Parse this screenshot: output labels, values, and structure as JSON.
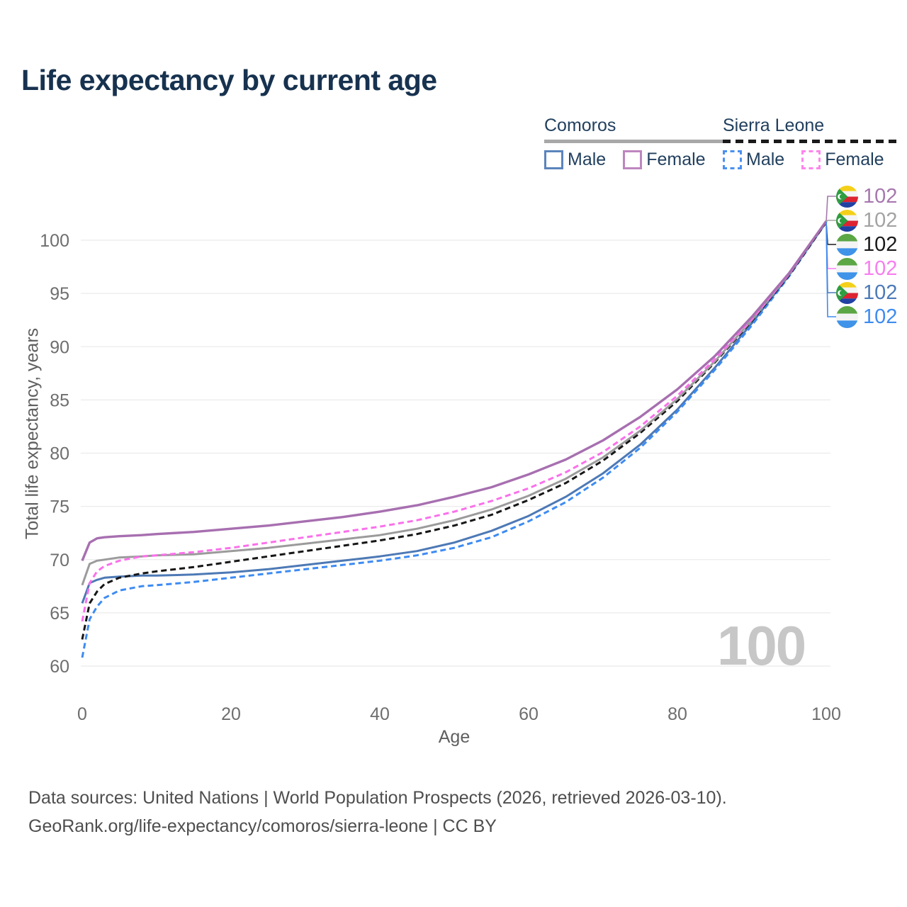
{
  "title": "Life expectancy by current age",
  "watermark": "100",
  "legend": {
    "groups": [
      {
        "title": "Comoros",
        "underline": "solid",
        "underline_color": "#a8a8a8",
        "items": [
          {
            "label": "Male",
            "swatch_color": "#5b84bc",
            "swatch_style": "solid"
          },
          {
            "label": "Female",
            "swatch_color": "#bd86bf",
            "swatch_style": "solid"
          }
        ]
      },
      {
        "title": "Sierra Leone",
        "underline": "dashed",
        "underline_color": "#1a1a1a",
        "items": [
          {
            "label": "Male",
            "swatch_color": "#4a90f0",
            "swatch_style": "dashed"
          },
          {
            "label": "Female",
            "swatch_color": "#fc85ec",
            "swatch_style": "dashed"
          }
        ]
      }
    ]
  },
  "y_axis": {
    "title": "Total life expectancy, years",
    "ticks": [
      60,
      65,
      70,
      75,
      80,
      85,
      90,
      95,
      100
    ]
  },
  "x_axis": {
    "title": "Age",
    "ticks": [
      0,
      20,
      40,
      60,
      80,
      100
    ]
  },
  "end_labels": [
    {
      "flag": "comoros",
      "series": "comoros_female",
      "value": "102",
      "color": "#a678ae"
    },
    {
      "flag": "comoros",
      "series": "comoros_all",
      "value": "102",
      "color": "#a3a3a3"
    },
    {
      "flag": "sierra_leone",
      "series": "sl_all",
      "value": "102",
      "color": "#1a1a1a"
    },
    {
      "flag": "sierra_leone",
      "series": "sl_female",
      "value": "102",
      "color": "#f77ef0"
    },
    {
      "flag": "comoros",
      "series": "comoros_male",
      "value": "102",
      "color": "#4d7ab8"
    },
    {
      "flag": "sierra_leone",
      "series": "sl_male",
      "value": "102",
      "color": "#3e8cf0"
    }
  ],
  "footer": {
    "line1": "Data sources: United Nations | World Population Prospects (2026, retrieved 2026-03-10).",
    "line2": "GeoRank.org/life-expectancy/comoros/sierra-leone | CC BY"
  },
  "chart_data": {
    "type": "line",
    "title": "Life expectancy by current age",
    "xlabel": "Age",
    "ylabel": "Total life expectancy, years",
    "x_ticks": [
      0,
      20,
      40,
      60,
      80,
      100
    ],
    "y_ticks": [
      60,
      65,
      70,
      75,
      80,
      85,
      90,
      95,
      100
    ],
    "xlim": [
      0,
      100
    ],
    "ylim": [
      60,
      100
    ],
    "grid": "horizontal",
    "legend_position": "top-right",
    "x": [
      0,
      1,
      2,
      3,
      5,
      8,
      10,
      15,
      20,
      25,
      30,
      35,
      40,
      45,
      50,
      55,
      60,
      65,
      70,
      75,
      80,
      85,
      90,
      95,
      100
    ],
    "series": [
      {
        "id": "comoros_male",
        "name": "Comoros Male",
        "color": "#4d79b5",
        "dash": "solid",
        "end_label": "102",
        "values": [
          65.9,
          67.8,
          68.1,
          68.3,
          68.4,
          68.5,
          68.5,
          68.6,
          68.8,
          69.1,
          69.5,
          69.9,
          70.3,
          70.8,
          71.6,
          72.7,
          74.1,
          75.9,
          78.1,
          80.8,
          84.1,
          88.0,
          92.2,
          96.7,
          101.7
        ]
      },
      {
        "id": "sl_male",
        "name": "Sierra Leone Male",
        "color": "#3d8bf2",
        "dash": "dashed",
        "end_label": "102",
        "values": [
          60.8,
          64.4,
          65.6,
          66.4,
          67.1,
          67.5,
          67.6,
          67.9,
          68.3,
          68.7,
          69.1,
          69.5,
          69.9,
          70.4,
          71.1,
          72.1,
          73.6,
          75.4,
          77.7,
          80.5,
          83.9,
          87.8,
          92.0,
          96.6,
          101.7
        ]
      },
      {
        "id": "sl_all",
        "name": "Sierra Leone",
        "color": "#161616",
        "dash": "dashed",
        "end_label": "102",
        "values": [
          62.5,
          65.9,
          67.0,
          67.7,
          68.3,
          68.7,
          68.9,
          69.3,
          69.8,
          70.3,
          70.8,
          71.3,
          71.8,
          72.4,
          73.2,
          74.2,
          75.6,
          77.2,
          79.3,
          81.9,
          84.9,
          88.5,
          92.4,
          96.7,
          101.7
        ]
      },
      {
        "id": "comoros_all",
        "name": "Comoros",
        "color": "#9b9b9b",
        "dash": "solid",
        "end_label": "102",
        "values": [
          67.6,
          69.6,
          69.9,
          70.0,
          70.2,
          70.3,
          70.4,
          70.5,
          70.8,
          71.1,
          71.5,
          71.9,
          72.3,
          72.9,
          73.7,
          74.7,
          76.0,
          77.6,
          79.6,
          82.1,
          85.1,
          88.6,
          92.5,
          96.8,
          101.8
        ]
      },
      {
        "id": "sl_female",
        "name": "Sierra Leone Female",
        "color": "#fa70ea",
        "dash": "dashed",
        "end_label": "102",
        "values": [
          64.2,
          67.8,
          68.9,
          69.4,
          69.9,
          70.3,
          70.4,
          70.7,
          71.1,
          71.6,
          72.1,
          72.6,
          73.1,
          73.7,
          74.5,
          75.5,
          76.7,
          78.2,
          80.1,
          82.5,
          85.4,
          88.8,
          92.6,
          96.8,
          101.8
        ]
      },
      {
        "id": "comoros_female",
        "name": "Comoros Female",
        "color": "#a76fb0",
        "dash": "solid",
        "end_label": "102",
        "values": [
          69.9,
          71.6,
          72.0,
          72.1,
          72.2,
          72.3,
          72.4,
          72.6,
          72.9,
          73.2,
          73.6,
          74.0,
          74.5,
          75.1,
          75.9,
          76.8,
          78.0,
          79.4,
          81.2,
          83.4,
          86.0,
          89.1,
          92.8,
          96.9,
          101.8
        ]
      }
    ]
  }
}
